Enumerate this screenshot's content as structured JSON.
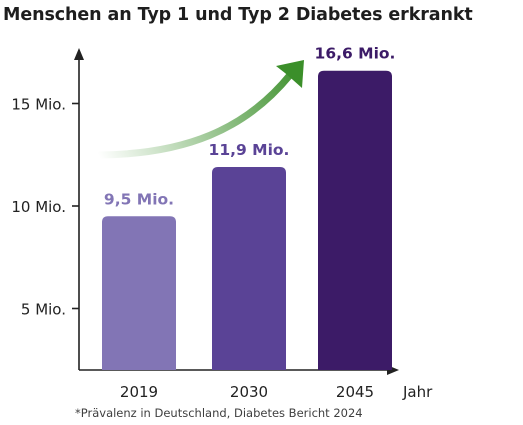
{
  "chart_data": {
    "type": "bar",
    "title": "Menschen an Typ 1 und Typ 2 Diabetes erkrankt",
    "categories": [
      "2019",
      "2030",
      "2045"
    ],
    "values": [
      9.5,
      11.9,
      16.6
    ],
    "value_labels": [
      "9,5 Mio.",
      "11,9 Mio.",
      "16,6 Mio."
    ],
    "xlabel": "Jahr",
    "ylabel": "",
    "yticks": [
      {
        "value": 5,
        "label": "5 Mio."
      },
      {
        "value": 10,
        "label": "10 Mio."
      },
      {
        "value": 15,
        "label": "15 Mio."
      }
    ],
    "ylim": [
      2,
      18
    ],
    "grid": false,
    "trend_arrow": "rising",
    "colors": {
      "bars": [
        "#8275b5",
        "#5a4396",
        "#3c1b67"
      ],
      "labels": [
        "#8275b5",
        "#5a4396",
        "#3c1b67"
      ],
      "arrow": "#3b8f2a",
      "axis": "#222222"
    }
  },
  "footnote": "*Prävalenz in Deutschland, Diabetes Bericht 2024"
}
